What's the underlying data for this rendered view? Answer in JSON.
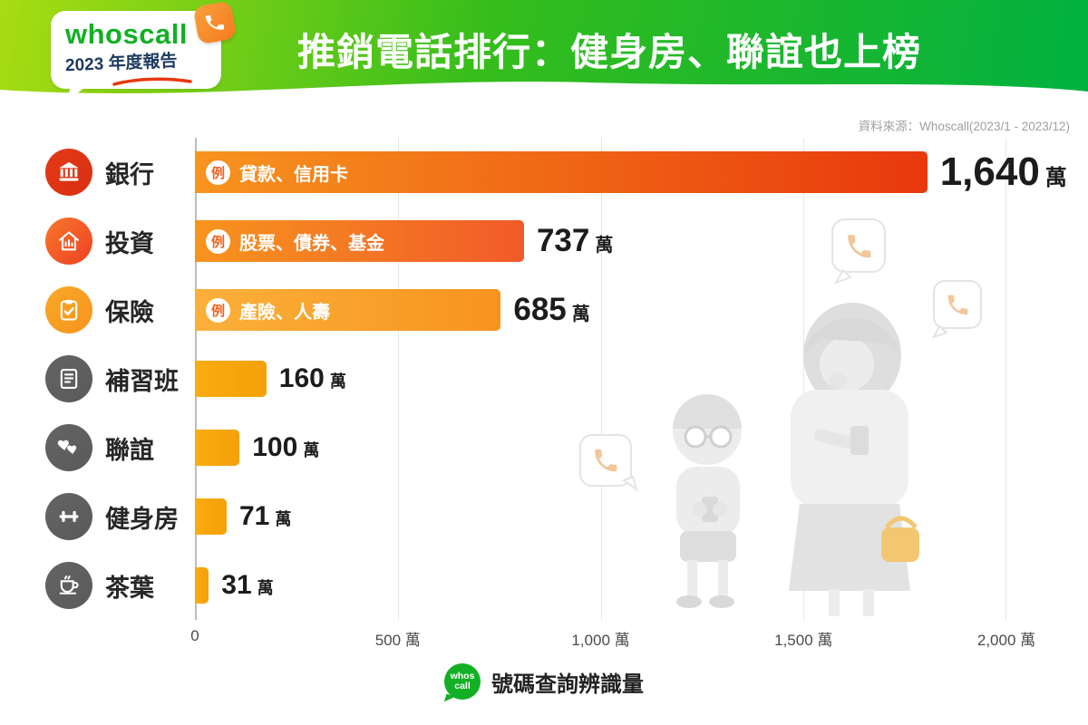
{
  "header": {
    "logo_brand": "whoscall",
    "logo_subtitle": "2023 年度報告",
    "title": "推銷電話排行：健身房、聯誼也上榜"
  },
  "source_note": "資料來源：Whoscall(2023/1 - 2023/12)",
  "footer": {
    "logo_line1": "whos",
    "logo_line2": "call",
    "label": "號碼查詢辨識量"
  },
  "colors": {
    "header_gradient_from": "#A8DC12",
    "header_gradient_to": "#00B140",
    "brand_green": "#12B024",
    "subtitle_navy": "#1E3A5F",
    "accent_red": "#E8380D",
    "accent_orange": "#F7941E",
    "amber": "#F6A70D",
    "gray_icon": "#606060",
    "value_text": "#1C1C1C"
  },
  "chart_data": {
    "type": "bar",
    "orientation": "horizontal",
    "title": "推銷電話排行：健身房、聯誼也上榜",
    "xlabel": "號碼查詢辨識量",
    "unit": "萬",
    "xlim": [
      0,
      2000
    ],
    "x_ticks": [
      "0",
      "500 萬",
      "1,000 萬",
      "1,500 萬",
      "2,000 萬"
    ],
    "grid": "vertical",
    "legend_position": "bottom",
    "categories": [
      "銀行",
      "投資",
      "保險",
      "補習班",
      "聯誼",
      "健身房",
      "茶葉"
    ],
    "values": [
      1640,
      737,
      685,
      160,
      100,
      71,
      31
    ],
    "rows": [
      {
        "label": "銀行",
        "value": 1640,
        "value_text": "1,640",
        "unit": "萬",
        "example_tag": "例",
        "example": "貸款、信用卡",
        "icon": "bank-icon",
        "icon_from": "#E23A18",
        "icon_to": "#D92F12",
        "bar_from": "#F7941E",
        "bar_to": "#E8380D"
      },
      {
        "label": "投資",
        "value": 737,
        "value_text": "737",
        "unit": "萬",
        "example_tag": "例",
        "example": "股票、債券、基金",
        "icon": "investment-icon",
        "icon_from": "#F8772B",
        "icon_to": "#EE4023",
        "bar_from": "#F7941E",
        "bar_to": "#F15A29"
      },
      {
        "label": "保險",
        "value": 685,
        "value_text": "685",
        "unit": "萬",
        "example_tag": "例",
        "example": "產險、人壽",
        "icon": "insurance-icon",
        "icon_from": "#F9A826",
        "icon_to": "#F7941E",
        "bar_from": "#FBB03B",
        "bar_to": "#F7941E"
      },
      {
        "label": "補習班",
        "value": 160,
        "value_text": "160",
        "unit": "萬",
        "example_tag": "",
        "example": "",
        "icon": "cram-school-icon",
        "icon_from": "#646464",
        "icon_to": "#5A5A5A",
        "bar_from": "#F9AC10",
        "bar_to": "#F5A009"
      },
      {
        "label": "聯誼",
        "value": 100,
        "value_text": "100",
        "unit": "萬",
        "example_tag": "",
        "example": "",
        "icon": "matchmaking-icon",
        "icon_from": "#646464",
        "icon_to": "#5A5A5A",
        "bar_from": "#F9AC10",
        "bar_to": "#F5A009"
      },
      {
        "label": "健身房",
        "value": 71,
        "value_text": "71",
        "unit": "萬",
        "example_tag": "",
        "example": "",
        "icon": "gym-icon",
        "icon_from": "#646464",
        "icon_to": "#5A5A5A",
        "bar_from": "#F9AC10",
        "bar_to": "#F5A009"
      },
      {
        "label": "茶葉",
        "value": 31,
        "value_text": "31",
        "unit": "萬",
        "example_tag": "",
        "example": "",
        "icon": "tea-icon",
        "icon_from": "#646464",
        "icon_to": "#5A5A5A",
        "bar_from": "#F9AC10",
        "bar_to": "#F5A009"
      }
    ]
  }
}
